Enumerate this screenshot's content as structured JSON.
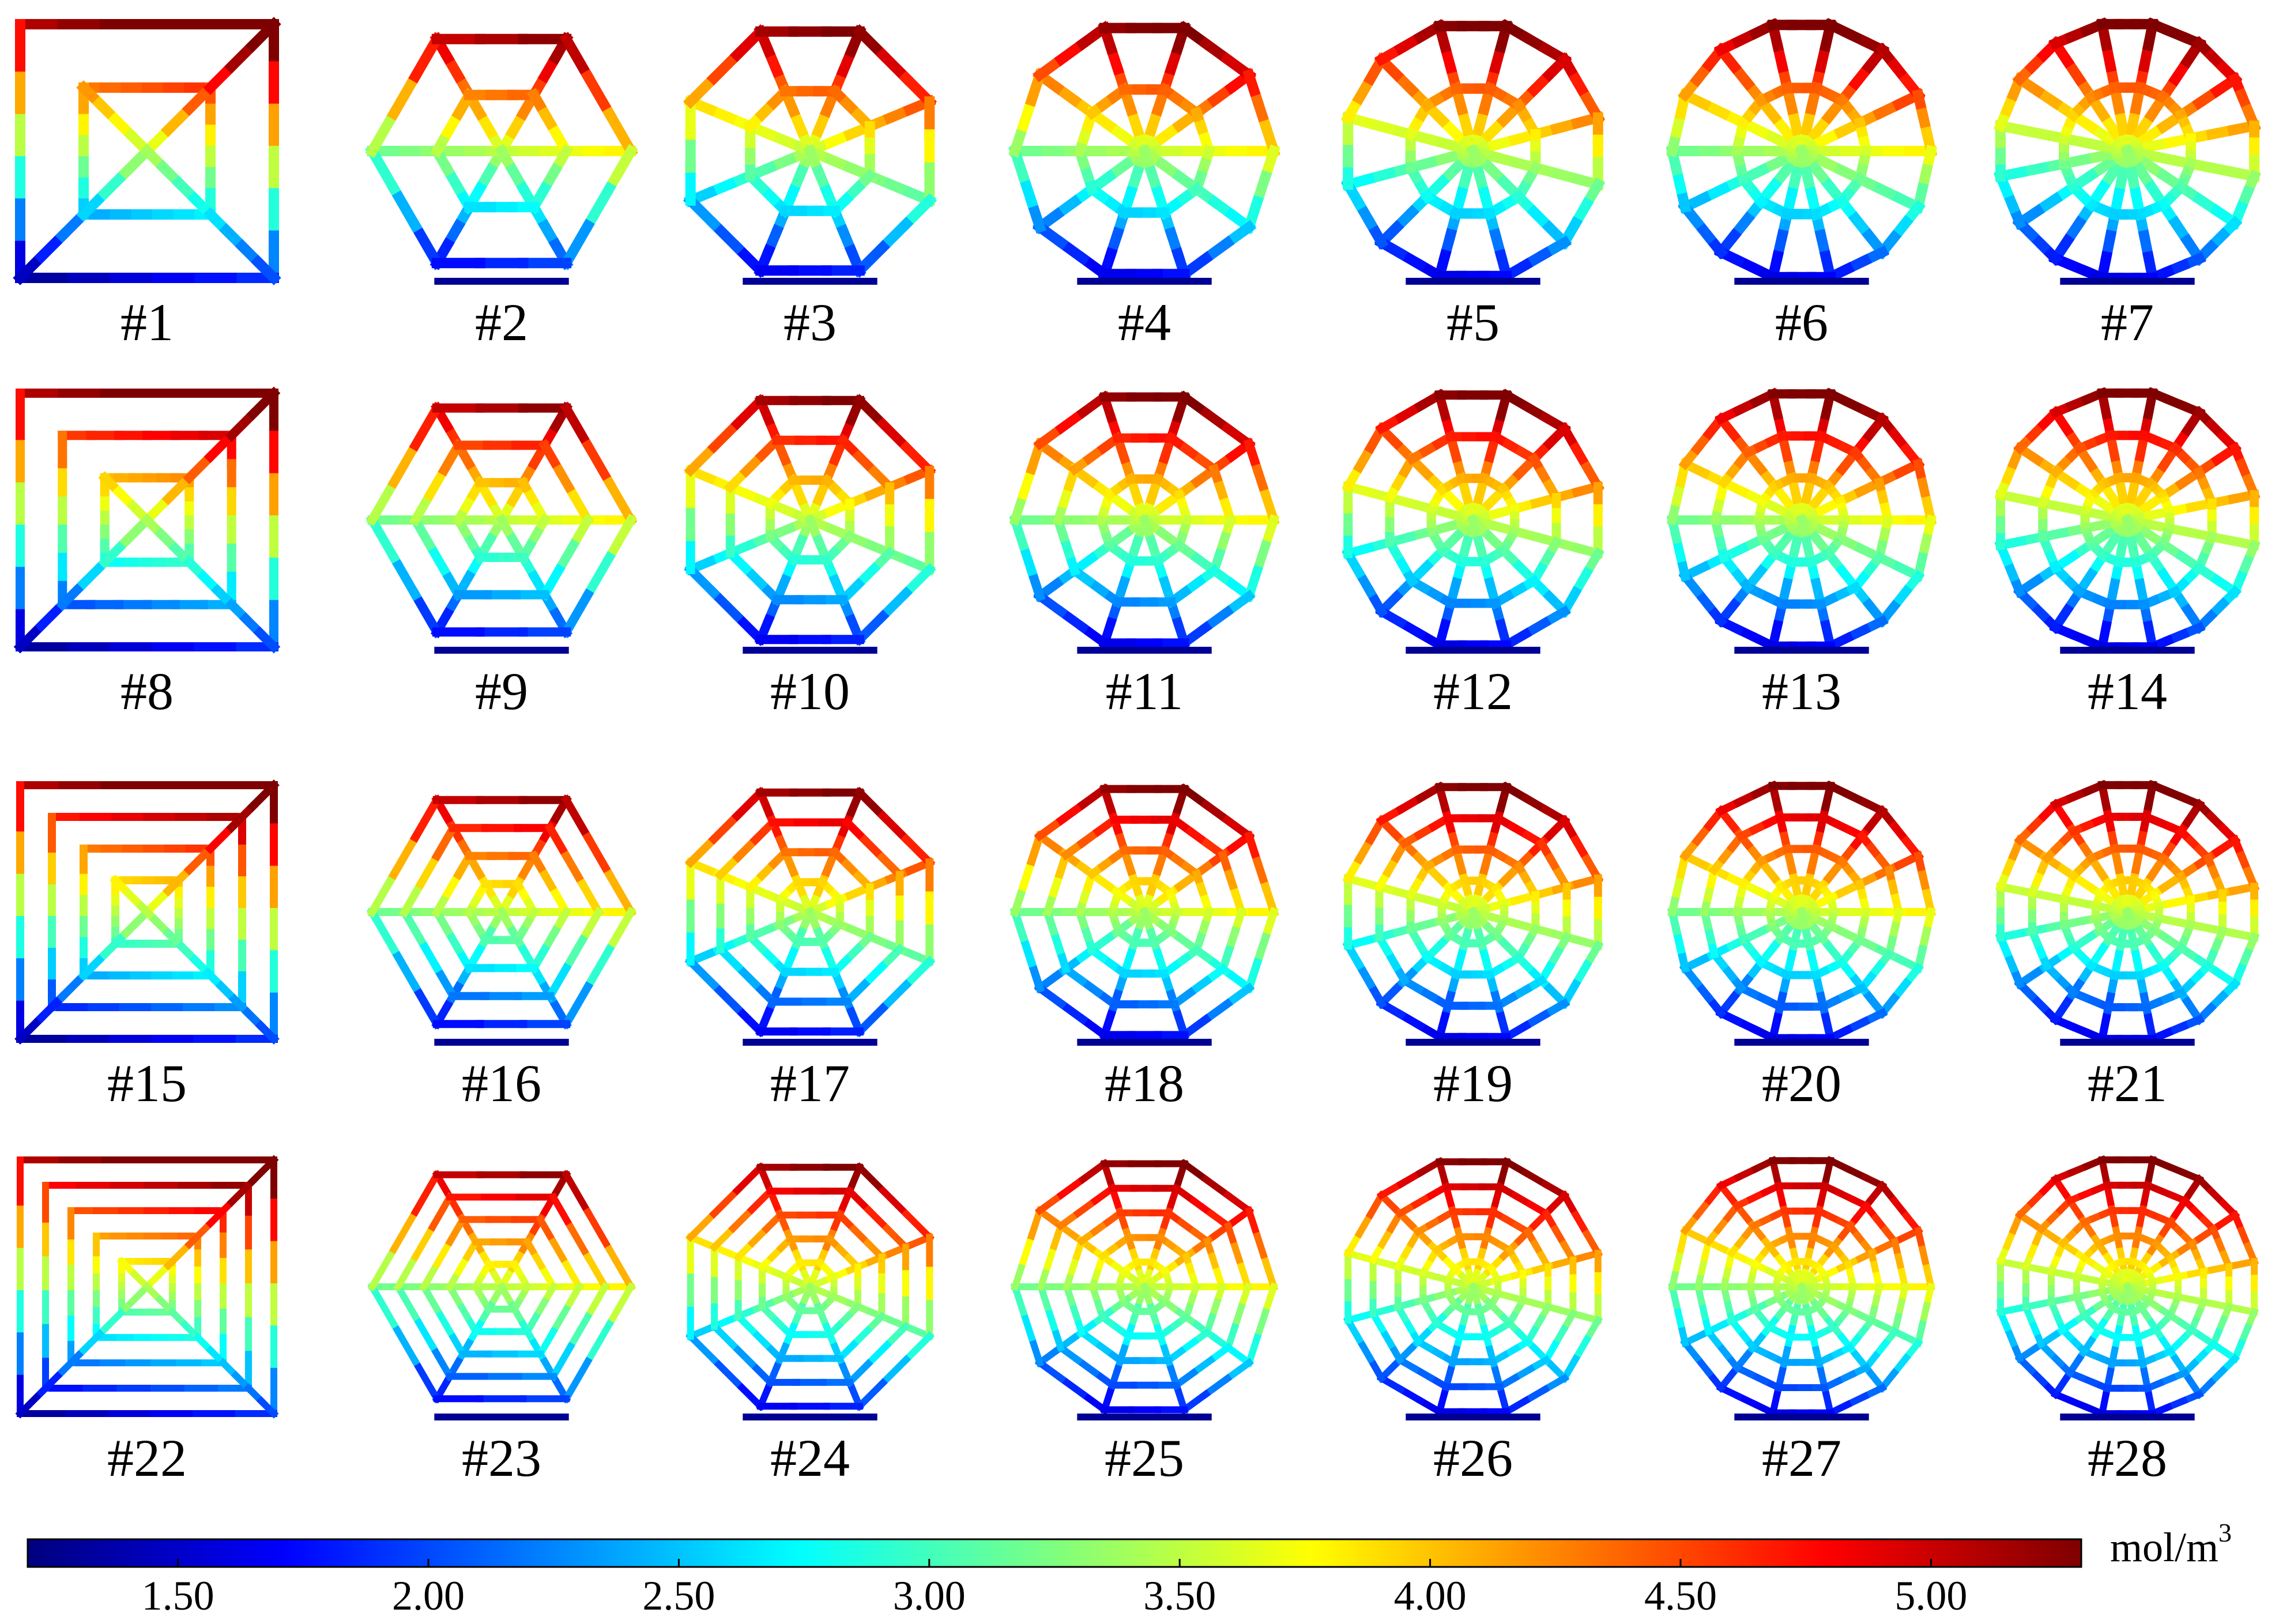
{
  "figure": {
    "cases": [
      {
        "label": "#1",
        "shape": "square",
        "sides": 4,
        "rings": 2
      },
      {
        "label": "#2",
        "shape": "polygon",
        "sides": 6,
        "rings": 2
      },
      {
        "label": "#3",
        "shape": "polygon",
        "sides": 8,
        "rings": 2
      },
      {
        "label": "#4",
        "shape": "polygon",
        "sides": 10,
        "rings": 2
      },
      {
        "label": "#5",
        "shape": "polygon",
        "sides": 12,
        "rings": 2
      },
      {
        "label": "#6",
        "shape": "polygon",
        "sides": 14,
        "rings": 2
      },
      {
        "label": "#7",
        "shape": "polygon",
        "sides": 16,
        "rings": 2
      },
      {
        "label": "#8",
        "shape": "square",
        "sides": 4,
        "rings": 3
      },
      {
        "label": "#9",
        "shape": "polygon",
        "sides": 6,
        "rings": 3
      },
      {
        "label": "#10",
        "shape": "polygon",
        "sides": 8,
        "rings": 3
      },
      {
        "label": "#11",
        "shape": "polygon",
        "sides": 10,
        "rings": 3
      },
      {
        "label": "#12",
        "shape": "polygon",
        "sides": 12,
        "rings": 3
      },
      {
        "label": "#13",
        "shape": "polygon",
        "sides": 14,
        "rings": 3
      },
      {
        "label": "#14",
        "shape": "polygon",
        "sides": 16,
        "rings": 3
      },
      {
        "label": "#15",
        "shape": "square",
        "sides": 4,
        "rings": 4
      },
      {
        "label": "#16",
        "shape": "polygon",
        "sides": 6,
        "rings": 4
      },
      {
        "label": "#17",
        "shape": "polygon",
        "sides": 8,
        "rings": 4
      },
      {
        "label": "#18",
        "shape": "polygon",
        "sides": 10,
        "rings": 4
      },
      {
        "label": "#19",
        "shape": "polygon",
        "sides": 12,
        "rings": 4
      },
      {
        "label": "#20",
        "shape": "polygon",
        "sides": 14,
        "rings": 4
      },
      {
        "label": "#21",
        "shape": "polygon",
        "sides": 16,
        "rings": 4
      },
      {
        "label": "#22",
        "shape": "square",
        "sides": 4,
        "rings": 5
      },
      {
        "label": "#23",
        "shape": "polygon",
        "sides": 6,
        "rings": 5
      },
      {
        "label": "#24",
        "shape": "polygon",
        "sides": 8,
        "rings": 5
      },
      {
        "label": "#25",
        "shape": "polygon",
        "sides": 10,
        "rings": 5
      },
      {
        "label": "#26",
        "shape": "polygon",
        "sides": 12,
        "rings": 5
      },
      {
        "label": "#27",
        "shape": "polygon",
        "sides": 14,
        "rings": 5
      },
      {
        "label": "#28",
        "shape": "polygon",
        "sides": 16,
        "rings": 5
      }
    ],
    "colorbar": {
      "min": 1.2,
      "max": 5.3,
      "ticks": [
        "1.50",
        "2.00",
        "2.50",
        "3.00",
        "3.50",
        "4.00",
        "4.50",
        "5.00"
      ],
      "unit_base": "mol/m",
      "unit_exponent": "3",
      "colormap": [
        "#00007f",
        "#0000ff",
        "#007fff",
        "#00ffff",
        "#7fff7f",
        "#ffff00",
        "#ff7f00",
        "#ff0000",
        "#7f0000"
      ]
    }
  }
}
